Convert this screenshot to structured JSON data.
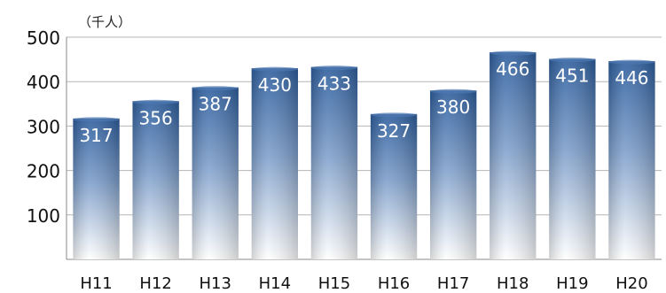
{
  "chart_data": {
    "type": "bar",
    "unit_label": "（千人）",
    "categories": [
      "H11",
      "H12",
      "H13",
      "H14",
      "H15",
      "H16",
      "H17",
      "H18",
      "H19",
      "H20"
    ],
    "values": [
      317,
      356,
      387,
      430,
      433,
      327,
      380,
      466,
      451,
      446
    ],
    "yticks": [
      100,
      200,
      300,
      400,
      500
    ],
    "ylim": [
      0,
      500
    ],
    "grid": true,
    "bar_color_top": "#2f5f9e",
    "bar_color_bottom": "#ffffff",
    "data_label_color": "#ffffff"
  }
}
